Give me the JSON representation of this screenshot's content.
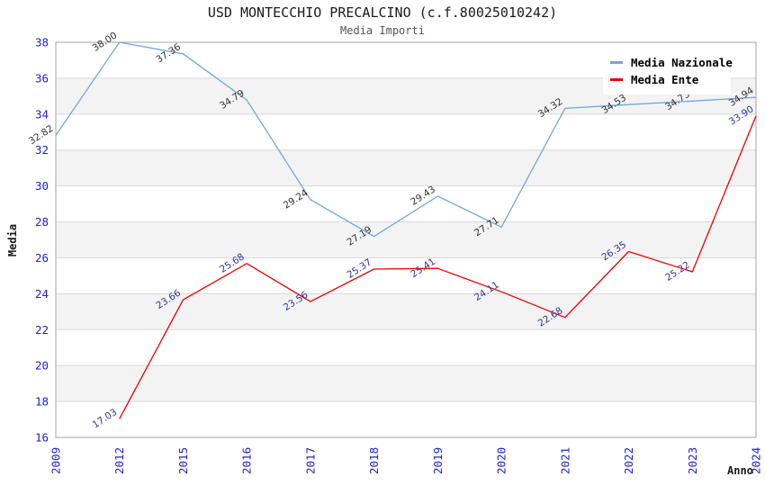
{
  "chart_data": {
    "type": "line",
    "title": "USD MONTECCHIO PRECALCINO (c.f.80025010242)",
    "subtitle": "Media Importi",
    "xlabel": "Anno",
    "ylabel": "Media",
    "categories": [
      "2009",
      "2012",
      "2015",
      "2016",
      "2017",
      "2018",
      "2019",
      "2020",
      "2021",
      "2022",
      "2023",
      "2024"
    ],
    "series": [
      {
        "name": "Media Nazionale",
        "color": "#6fa8dd",
        "label_color": "#333333",
        "values": [
          32.82,
          38.0,
          37.36,
          34.79,
          29.24,
          27.19,
          29.43,
          27.71,
          34.32,
          34.53,
          34.73,
          34.94
        ]
      },
      {
        "name": "Media Ente",
        "color": "#ee0000",
        "label_color": "#333399",
        "values": [
          null,
          17.03,
          23.66,
          25.68,
          23.56,
          25.37,
          25.41,
          24.11,
          22.68,
          26.35,
          25.22,
          33.9
        ]
      }
    ],
    "ylim": [
      16,
      38
    ],
    "ytick_step": 2,
    "grid": true,
    "band_fill": true,
    "legend_position": "top-right"
  },
  "colors": {
    "axis_tick": "#2020d0",
    "grid": "#d9d9d9",
    "band": "#f3f3f3",
    "plot_border": "#a6a6a6",
    "title": "#1a1a1a",
    "subtitle": "#555555"
  }
}
